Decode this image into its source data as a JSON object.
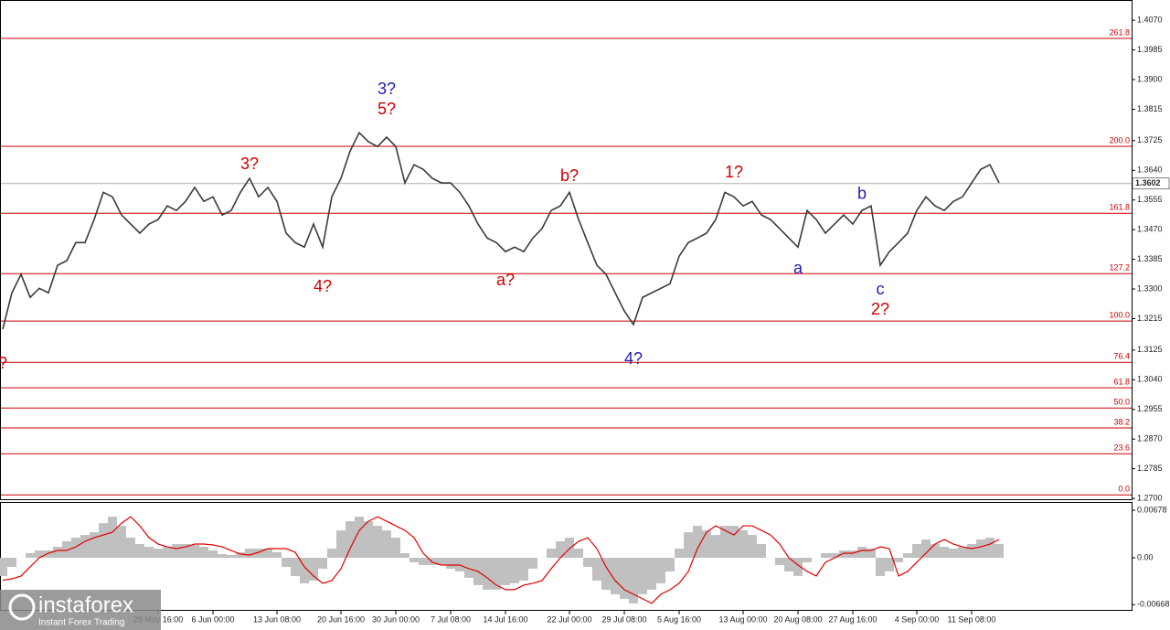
{
  "chart_data": [
    {
      "type": "line",
      "categories": [
        null,
        null,
        null,
        null,
        null,
        null,
        null,
        null,
        null,
        null,
        null,
        null,
        null,
        null,
        null,
        null,
        null,
        "29 May 16:00",
        null,
        null,
        null,
        null,
        null,
        "6 Jun 00:00",
        null,
        null,
        null,
        null,
        null,
        null,
        "13 Jun 08:00",
        null,
        null,
        null,
        null,
        null,
        null,
        "20 Jun 16:00",
        null,
        null,
        null,
        null,
        null,
        "30 Jun 00:00",
        null,
        null,
        null,
        null,
        null,
        "7 Jul 08:00",
        null,
        null,
        null,
        null,
        null,
        "14 Jul 16:00",
        null,
        null,
        null,
        null,
        null,
        null,
        "22 Jul 00:00",
        null,
        null,
        null,
        null,
        null,
        "29 Jul 08:00",
        null,
        null,
        null,
        null,
        null,
        "5 Aug 16:00",
        null,
        null,
        null,
        null,
        null,
        null,
        "13 Aug 00:00",
        null,
        null,
        null,
        null,
        null,
        "20 Aug 08:00",
        null,
        null,
        null,
        null,
        null,
        "27 Aug 16:00",
        null,
        null,
        null,
        null,
        null,
        null,
        "4 Sep 00:00",
        null,
        null,
        null,
        null,
        null,
        "11 Sep 08:00",
        null,
        null,
        null
      ],
      "series": [
        {
          "color": "#3a3a3a",
          "values": [
            1.3185,
            1.3289,
            1.3342,
            1.3276,
            1.3302,
            1.3289,
            1.3368,
            1.3381,
            1.3433,
            1.3433,
            1.3499,
            1.3577,
            1.3564,
            1.3512,
            1.3486,
            1.346,
            1.3486,
            1.3499,
            1.3538,
            1.3525,
            1.3551,
            1.3591,
            1.3551,
            1.3564,
            1.3512,
            1.3525,
            1.3577,
            1.3617,
            1.3564,
            1.3591,
            1.3551,
            1.346,
            1.3433,
            1.342,
            1.3486,
            1.342,
            1.3564,
            1.3617,
            1.3695,
            1.3748,
            1.3722,
            1.3708,
            1.3735,
            1.3708,
            1.3604,
            1.3656,
            1.3643,
            1.3617,
            1.3604,
            1.3604,
            1.3577,
            1.3538,
            1.3486,
            1.3446,
            1.3433,
            1.3407,
            1.342,
            1.3407,
            1.3446,
            1.3473,
            1.3525,
            1.3538,
            1.3577,
            1.3499,
            1.3433,
            1.3368,
            1.3342,
            1.3289,
            1.3237,
            1.3198,
            1.3276,
            1.3289,
            1.3302,
            1.3315,
            1.3394,
            1.3433,
            1.3446,
            1.346,
            1.3499,
            1.3577,
            1.3564,
            1.3538,
            1.3551,
            1.3512,
            1.3499,
            1.3473,
            1.3446,
            1.342,
            1.3525,
            1.3499,
            1.346,
            1.3486,
            1.3512,
            1.3486,
            1.3525,
            1.3538,
            1.3368,
            1.3407,
            1.3433,
            1.346,
            1.3525,
            1.3564,
            1.3538,
            1.3525,
            1.3551,
            1.3564,
            1.3604,
            1.3643,
            1.3656,
            1.3604
          ]
        }
      ],
      "ylim": [
        1.2695,
        1.4128
      ],
      "yticks": [
        {
          "value": 1.407,
          "label": "1.4070"
        },
        {
          "value": 1.3985,
          "label": "1.3985"
        },
        {
          "value": 1.39,
          "label": "1.3900"
        },
        {
          "value": 1.3815,
          "label": "1.3815"
        },
        {
          "value": 1.3725,
          "label": "1.3725"
        },
        {
          "value": 1.364,
          "label": "1.3640"
        },
        {
          "value": 1.3555,
          "label": "1.3555"
        },
        {
          "value": 1.347,
          "label": "1.3470"
        },
        {
          "value": 1.3385,
          "label": "1.3385"
        },
        {
          "value": 1.33,
          "label": "1.3300"
        },
        {
          "value": 1.3215,
          "label": "1.3215"
        },
        {
          "value": 1.3125,
          "label": "1.3125"
        },
        {
          "value": 1.304,
          "label": "1.3040"
        },
        {
          "value": 1.2955,
          "label": "1.2955"
        },
        {
          "value": 1.287,
          "label": "1.2870"
        },
        {
          "value": 1.2785,
          "label": "1.2785"
        },
        {
          "value": 1.27,
          "label": "1.2700"
        }
      ],
      "current": 1.3602,
      "level_color": "#cc0000",
      "levels": [
        {
          "label": "261.8",
          "value": 1.4018
        },
        {
          "label": "200.0",
          "value": 1.3709
        },
        {
          "label": "161.8",
          "value": 1.3517
        },
        {
          "label": "127.2",
          "value": 1.3344
        },
        {
          "label": "100.0",
          "value": 1.3208
        },
        {
          "label": "76.4",
          "value": 1.309
        },
        {
          "label": "61.8",
          "value": 1.3017
        },
        {
          "label": "50.0",
          "value": 1.2959
        },
        {
          "label": "38.2",
          "value": 1.2902
        },
        {
          "label": "23.6",
          "value": 1.2828
        },
        {
          "label": "0.0",
          "value": 1.271
        }
      ],
      "annotations": [
        {
          "text": "?",
          "color": "#cc0000",
          "x": 0,
          "y": 1.3085
        },
        {
          "text": "3?",
          "color": "#cc0000",
          "x": 27,
          "y": 1.3656
        },
        {
          "text": "4?",
          "color": "#cc0000",
          "x": 35,
          "y": 1.3305
        },
        {
          "text": "3?",
          "color": "#1f1fb4",
          "x": 42,
          "y": 1.3871
        },
        {
          "text": "5?",
          "color": "#cc0000",
          "x": 42,
          "y": 1.3813
        },
        {
          "text": "a?",
          "color": "#cc0000",
          "x": 55,
          "y": 1.3323
        },
        {
          "text": "b?",
          "color": "#cc0000",
          "x": 62,
          "y": 1.3622
        },
        {
          "text": "4?",
          "color": "#1f1fb4",
          "x": 69,
          "y": 1.3098
        },
        {
          "text": "1?",
          "color": "#cc0000",
          "x": 80,
          "y": 1.3632
        },
        {
          "text": "a",
          "color": "#1f1fb4",
          "x": 87,
          "y": 1.3357
        },
        {
          "text": "b",
          "color": "#1f1fb4",
          "x": 94,
          "y": 1.357
        },
        {
          "text": "c",
          "color": "#1f1fb4",
          "x": 96,
          "y": 1.3297
        },
        {
          "text": "2?",
          "color": "#cc0000",
          "x": 96,
          "y": 1.3239
        }
      ]
    },
    {
      "type": "macd",
      "series": [
        {
          "type": "bar",
          "color": "#c0c0c0",
          "values": [
            -0.0026,
            -0.0013,
            0,
            0.00065,
            0.00104,
            0.00104,
            0.00156,
            0.00234,
            0.00286,
            0.00325,
            0.00364,
            0.00494,
            0.00585,
            0.00455,
            0.00286,
            0.00195,
            0.00156,
            0.0013,
            0.00156,
            0.00195,
            0.00195,
            0.00182,
            0.00156,
            0.00104,
            0.00052,
            0.00039,
            0.00078,
            0.0013,
            0.0013,
            0.0013,
            0.00078,
            -0.0013,
            -0.0026,
            -0.00364,
            -0.00325,
            -0.00156,
            0.0013,
            0.0039,
            0.0052,
            0.00585,
            0.0052,
            0.00455,
            0.0039,
            0.00286,
            0.00065,
            -0.00065,
            -0.00104,
            -0.00104,
            -0.00104,
            -0.00156,
            -0.00195,
            -0.00286,
            -0.0039,
            -0.00455,
            -0.00455,
            -0.0039,
            -0.00364,
            -0.00325,
            -0.00156,
            0,
            0.0013,
            0.00234,
            0.00286,
            0.0013,
            -0.0013,
            -0.00325,
            -0.00455,
            -0.0052,
            -0.00585,
            -0.0065,
            -0.0052,
            -0.00455,
            -0.00364,
            -0.00195,
            0.0013,
            0.00364,
            0.00455,
            0.0039,
            0.00325,
            0.00455,
            0.00455,
            0.0039,
            0.00325,
            0.00195,
            0,
            -0.00104,
            -0.00195,
            -0.0026,
            -0.00065,
            0,
            0.00065,
            0.00065,
            0.00104,
            0.00104,
            0.00156,
            0.0013,
            -0.0026,
            -0.00195,
            -0.00065,
            0.00065,
            0.00195,
            0.0026,
            0.00195,
            0.00156,
            0.0013,
            0.00156,
            0.00195,
            0.0026,
            0.00286,
            0.00195
          ]
        },
        {
          "type": "line",
          "color": "#e00000",
          "values": [
            -0.0032,
            -0.003,
            -0.0026,
            -0.0013,
            0,
            0.00065,
            0.00104,
            0.00104,
            0.00156,
            0.00234,
            0.00286,
            0.00325,
            0.00364,
            0.00494,
            0.00585,
            0.00455,
            0.00286,
            0.00195,
            0.00156,
            0.0013,
            0.00156,
            0.00195,
            0.00195,
            0.00182,
            0.00156,
            0.00104,
            0.00052,
            0.00039,
            0.00078,
            0.0013,
            0.0013,
            0.0013,
            0.00078,
            -0.0013,
            -0.0026,
            -0.00364,
            -0.00325,
            -0.00156,
            0.0013,
            0.0039,
            0.0052,
            0.00585,
            0.0052,
            0.00455,
            0.0039,
            0.00286,
            0.00065,
            -0.00065,
            -0.00104,
            -0.00104,
            -0.00104,
            -0.00156,
            -0.00195,
            -0.00286,
            -0.0039,
            -0.00455,
            -0.00455,
            -0.0039,
            -0.00364,
            -0.00325,
            -0.00156,
            0,
            0.0013,
            0.00234,
            0.00286,
            0.0013,
            -0.0013,
            -0.00325,
            -0.00455,
            -0.0052,
            -0.00585,
            -0.0065,
            -0.0052,
            -0.00455,
            -0.00364,
            -0.00195,
            0.0013,
            0.00364,
            0.00455,
            0.0039,
            0.00325,
            0.00455,
            0.00455,
            0.0039,
            0.00325,
            0.00195,
            0,
            -0.00104,
            -0.00195,
            -0.0026,
            -0.00065,
            0,
            0.00065,
            0.00065,
            0.00104,
            0.00104,
            0.00156,
            0.0013,
            -0.0026,
            -0.00195,
            -0.00065,
            0.00065,
            0.00195,
            0.0026,
            0.00195,
            0.00156,
            0.0013,
            0.00156,
            0.00195,
            0.0026
          ]
        }
      ],
      "ylim": [
        -0.00743,
        0.00795
      ],
      "yticks": [
        0.00678,
        {
          "value": 0,
          "label": "0.00"
        },
        -0.00668
      ]
    }
  ],
  "branding": {
    "name": "instaforex",
    "tagline": "Instant Forex Trading"
  }
}
